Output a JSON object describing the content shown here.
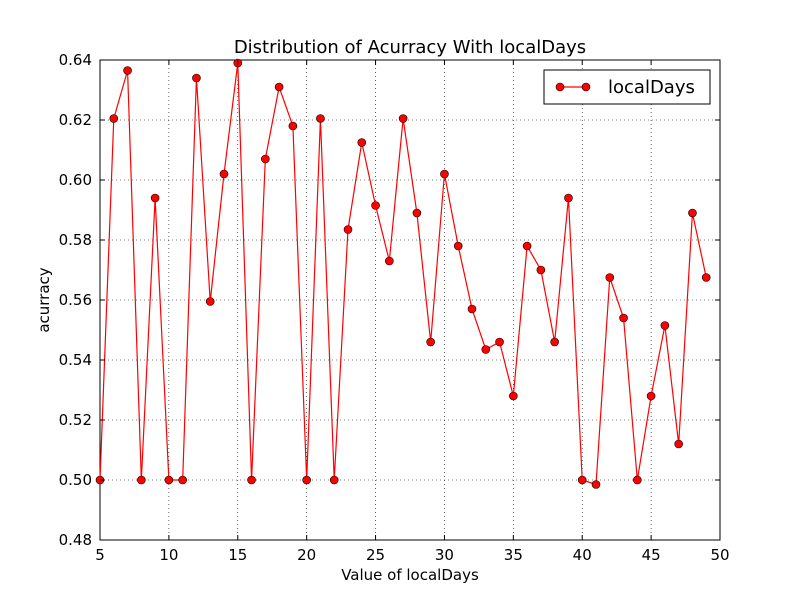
{
  "chart_data": {
    "type": "line",
    "title": "Distribution of Acurracy With localDays",
    "xlabel": "Value of localDays",
    "ylabel": "acurracy",
    "xlim": [
      5,
      50
    ],
    "ylim": [
      0.48,
      0.64
    ],
    "xticks": [
      5,
      10,
      15,
      20,
      25,
      30,
      35,
      40,
      45,
      50
    ],
    "yticks": [
      0.48,
      0.5,
      0.52,
      0.54,
      0.56,
      0.58,
      0.6,
      0.62,
      0.64
    ],
    "xtick_labels": [
      "5",
      "10",
      "15",
      "20",
      "25",
      "30",
      "35",
      "40",
      "45",
      "50"
    ],
    "ytick_labels": [
      "0.48",
      "0.50",
      "0.52",
      "0.54",
      "0.56",
      "0.58",
      "0.60",
      "0.62",
      "0.64"
    ],
    "grid": true,
    "legend_position": "top-right",
    "series": [
      {
        "name": "localDays",
        "color": "#ff0000",
        "marker": "circle",
        "x": [
          5,
          6,
          7,
          8,
          9,
          10,
          11,
          12,
          13,
          14,
          15,
          16,
          17,
          18,
          19,
          20,
          21,
          22,
          23,
          24,
          25,
          26,
          27,
          28,
          29,
          30,
          31,
          32,
          33,
          34,
          35,
          36,
          37,
          38,
          39,
          40,
          41,
          42,
          43,
          44,
          45,
          46,
          47,
          48,
          49
        ],
        "y": [
          0.5,
          0.6205,
          0.6365,
          0.5,
          0.594,
          0.5,
          0.5,
          0.634,
          0.5595,
          0.602,
          0.639,
          0.5,
          0.607,
          0.631,
          0.618,
          0.5,
          0.6205,
          0.5,
          0.5835,
          0.6125,
          0.5915,
          0.573,
          0.6205,
          0.589,
          0.546,
          0.602,
          0.578,
          0.557,
          0.5435,
          0.546,
          0.528,
          0.578,
          0.57,
          0.546,
          0.594,
          0.5,
          0.4985,
          0.5675,
          0.554,
          0.5,
          0.528,
          0.5515,
          0.512,
          0.589,
          0.5675
        ]
      }
    ]
  }
}
